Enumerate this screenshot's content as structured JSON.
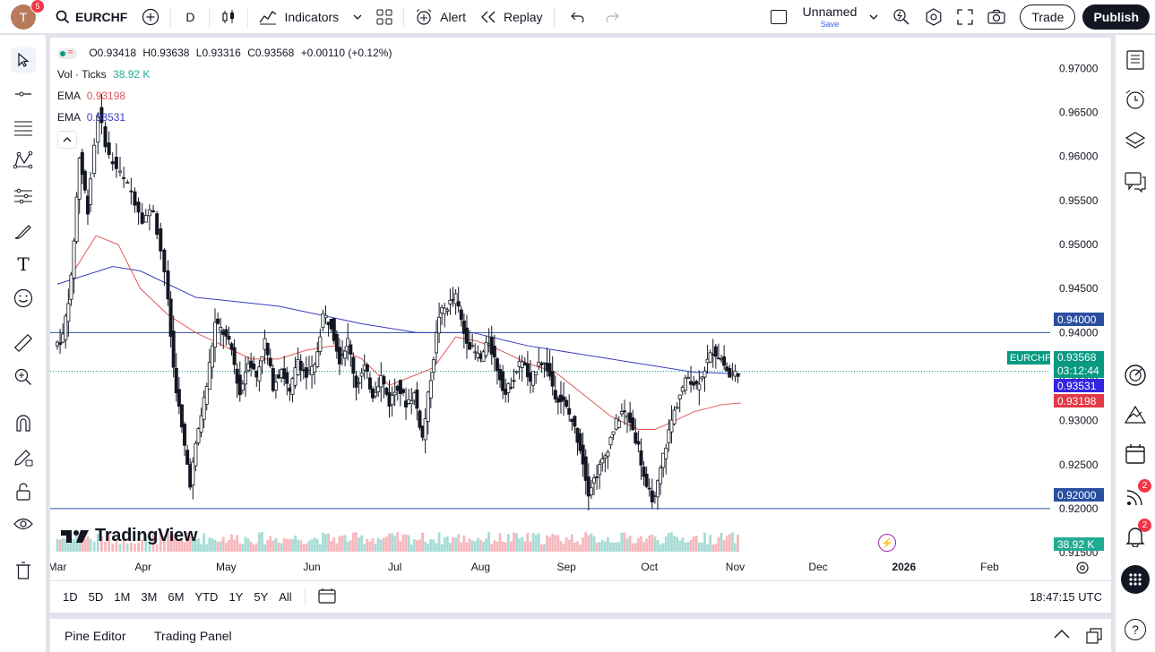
{
  "topbar": {
    "avatar_letter": "T",
    "notification_count": "5",
    "symbol": "EURCHF",
    "interval": "D",
    "indicators_label": "Indicators",
    "alert_label": "Alert",
    "replay_label": "Replay",
    "layout_name": "Unnamed",
    "layout_save": "Save",
    "trade_label": "Trade",
    "publish_label": "Publish"
  },
  "legend": {
    "o": "O0.93418",
    "h": "H0.93638",
    "l": "L0.93316",
    "c": "C0.93568",
    "change": "+0.00110 (+0.12%)",
    "vol_label": "Vol · Ticks",
    "vol_value": "38.92 K",
    "ema1_label": "EMA",
    "ema1_value": "0.93198",
    "ema2_label": "EMA",
    "ema2_value": "0.93531"
  },
  "colors": {
    "up": "#089981",
    "down": "#f23645",
    "candle_up_fill": "#ffffff",
    "candle_body": "#131722",
    "ema_fast": "#e05a5a",
    "ema_slow": "#3b3fbf",
    "hline": "#2a4fa0",
    "vol_up": "#a8dcd6",
    "vol_down": "#f7b8bd"
  },
  "chart_data": {
    "type": "candlestick",
    "symbol": "EURCHF",
    "y_ticks": [
      "0.97000",
      "0.96500",
      "0.96000",
      "0.95500",
      "0.95000",
      "0.94500",
      "0.94000",
      "0.93500",
      "0.93000",
      "0.92500",
      "0.92000",
      "0.91500"
    ],
    "x_ticks": [
      "Mar",
      "Apr",
      "May",
      "Jun",
      "Jul",
      "Aug",
      "Sep",
      "Oct",
      "Nov",
      "Dec",
      "2026",
      "Feb"
    ],
    "ylim": [
      0.9145,
      0.9735
    ],
    "hlines": [
      {
        "value": 0.94,
        "label": "0.94000"
      },
      {
        "value": 0.92,
        "label": "0.92000"
      }
    ],
    "price_labels": {
      "symbol_tag": "EURCHF",
      "last": "0.93568",
      "countdown": "03:12:44",
      "ema_slow": "0.93531",
      "ema_fast": "0.93198",
      "volume": "38.92 K"
    },
    "close_points": [
      [
        0,
        0.9385
      ],
      [
        3,
        0.9395
      ],
      [
        6,
        0.946
      ],
      [
        9,
        0.96
      ],
      [
        12,
        0.954
      ],
      [
        16,
        0.965
      ],
      [
        20,
        0.96
      ],
      [
        24,
        0.958
      ],
      [
        28,
        0.956
      ],
      [
        32,
        0.953
      ],
      [
        36,
        0.954
      ],
      [
        40,
        0.947
      ],
      [
        43,
        0.936
      ],
      [
        46,
        0.929
      ],
      [
        49,
        0.923
      ],
      [
        52,
        0.929
      ],
      [
        55,
        0.934
      ],
      [
        58,
        0.941
      ],
      [
        61,
        0.94
      ],
      [
        64,
        0.938
      ],
      [
        67,
        0.933
      ],
      [
        70,
        0.937
      ],
      [
        73,
        0.935
      ],
      [
        76,
        0.939
      ],
      [
        79,
        0.934
      ],
      [
        82,
        0.936
      ],
      [
        85,
        0.933
      ],
      [
        88,
        0.937
      ],
      [
        91,
        0.935
      ],
      [
        94,
        0.936
      ],
      [
        97,
        0.942
      ],
      [
        100,
        0.941
      ],
      [
        103,
        0.937
      ],
      [
        106,
        0.939
      ],
      [
        109,
        0.934
      ],
      [
        112,
        0.936
      ],
      [
        115,
        0.933
      ],
      [
        118,
        0.935
      ],
      [
        121,
        0.932
      ],
      [
        124,
        0.934
      ],
      [
        127,
        0.932
      ],
      [
        130,
        0.933
      ],
      [
        133,
        0.928
      ],
      [
        136,
        0.935
      ],
      [
        139,
        0.942
      ],
      [
        142,
        0.943
      ],
      [
        145,
        0.944
      ],
      [
        148,
        0.94
      ],
      [
        151,
        0.938
      ],
      [
        154,
        0.937
      ],
      [
        157,
        0.939
      ],
      [
        160,
        0.936
      ],
      [
        163,
        0.933
      ],
      [
        166,
        0.935
      ],
      [
        169,
        0.937
      ],
      [
        172,
        0.934
      ],
      [
        175,
        0.937
      ],
      [
        178,
        0.936
      ],
      [
        181,
        0.933
      ],
      [
        184,
        0.932
      ],
      [
        187,
        0.93
      ],
      [
        190,
        0.927
      ],
      [
        193,
        0.922
      ],
      [
        196,
        0.924
      ],
      [
        199,
        0.926
      ],
      [
        202,
        0.929
      ],
      [
        205,
        0.931
      ],
      [
        208,
        0.93
      ],
      [
        211,
        0.927
      ],
      [
        214,
        0.922
      ],
      [
        217,
        0.921
      ],
      [
        220,
        0.926
      ],
      [
        223,
        0.93
      ],
      [
        226,
        0.933
      ],
      [
        229,
        0.935
      ],
      [
        232,
        0.934
      ],
      [
        235,
        0.936
      ],
      [
        238,
        0.938
      ],
      [
        241,
        0.937
      ],
      [
        244,
        0.935
      ],
      [
        247,
        0.9356
      ]
    ],
    "x_day_max": 300,
    "ema_fast_points": [
      [
        6,
        0.947
      ],
      [
        14,
        0.951
      ],
      [
        22,
        0.95
      ],
      [
        30,
        0.945
      ],
      [
        40,
        0.942
      ],
      [
        50,
        0.94
      ],
      [
        60,
        0.9385
      ],
      [
        70,
        0.937
      ],
      [
        80,
        0.937
      ],
      [
        90,
        0.938
      ],
      [
        100,
        0.9385
      ],
      [
        110,
        0.937
      ],
      [
        120,
        0.934
      ],
      [
        128,
        0.935
      ],
      [
        136,
        0.936
      ],
      [
        144,
        0.9395
      ],
      [
        152,
        0.939
      ],
      [
        160,
        0.938
      ],
      [
        170,
        0.9365
      ],
      [
        180,
        0.9355
      ],
      [
        190,
        0.933
      ],
      [
        200,
        0.9305
      ],
      [
        210,
        0.929
      ],
      [
        216,
        0.929
      ],
      [
        222,
        0.9298
      ],
      [
        230,
        0.931
      ],
      [
        240,
        0.9318
      ],
      [
        247,
        0.932
      ]
    ],
    "ema_slow_points": [
      [
        0,
        0.9455
      ],
      [
        20,
        0.9475
      ],
      [
        30,
        0.947
      ],
      [
        50,
        0.944
      ],
      [
        80,
        0.943
      ],
      [
        110,
        0.941
      ],
      [
        130,
        0.94
      ],
      [
        150,
        0.94
      ],
      [
        170,
        0.9385
      ],
      [
        190,
        0.9375
      ],
      [
        210,
        0.9365
      ],
      [
        230,
        0.9355
      ],
      [
        247,
        0.9353
      ]
    ]
  },
  "bottom": {
    "ranges": [
      "1D",
      "5D",
      "1M",
      "3M",
      "6M",
      "YTD",
      "1Y",
      "5Y",
      "All"
    ],
    "time": "18:47:15 UTC",
    "pine_editor": "Pine Editor",
    "trading_panel": "Trading Panel"
  },
  "watermark": "TradingView",
  "right_badges": {
    "ideas": "2",
    "alerts": "2"
  }
}
